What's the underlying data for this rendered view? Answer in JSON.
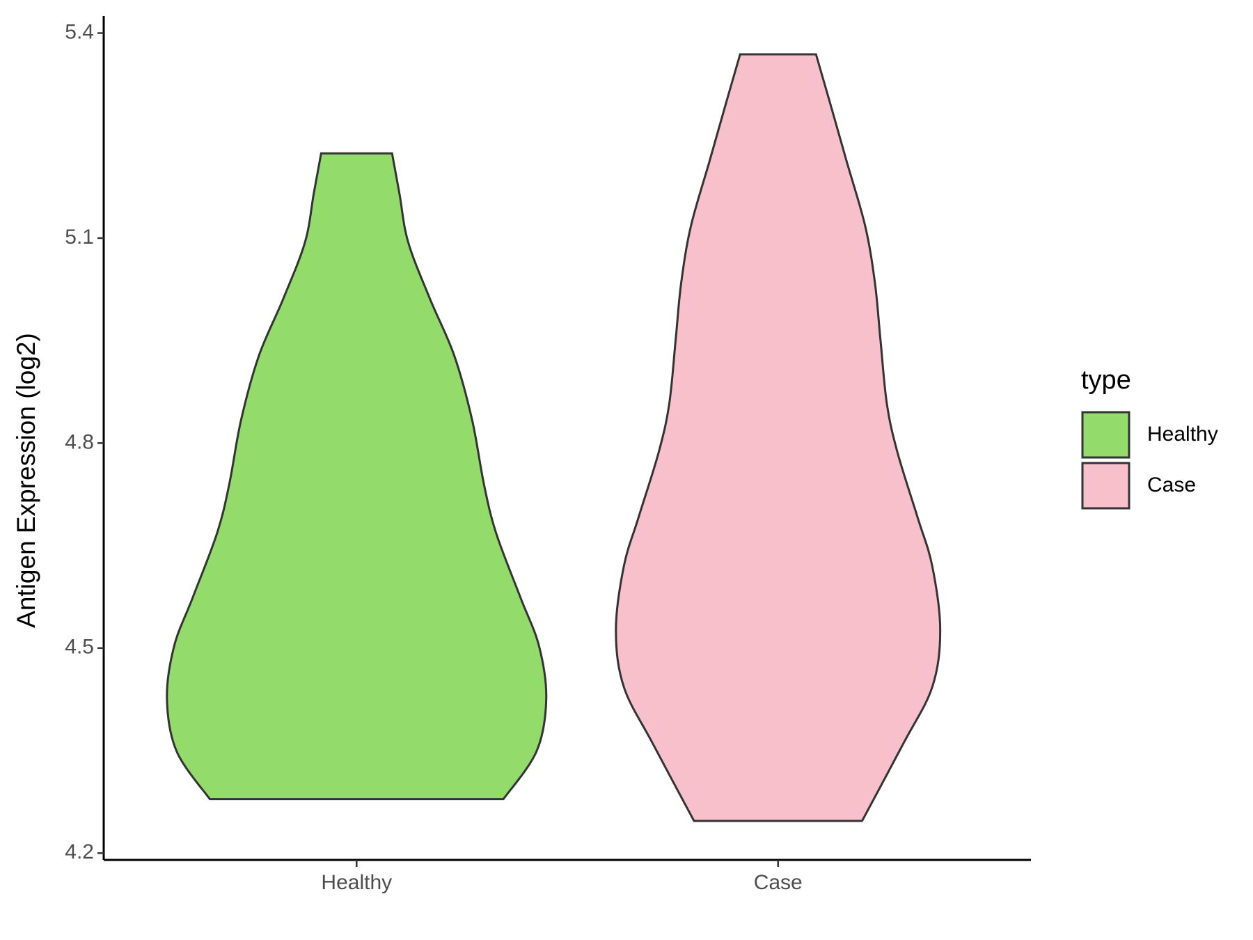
{
  "chart_data": {
    "type": "violin",
    "y_label": "Antigen Expression (log2)",
    "categories": [
      "Healthy",
      "Case"
    ],
    "legend_title": "type",
    "series": [
      {
        "name": "Healthy",
        "color": "#93DB6B",
        "values": [
          5.224,
          5.165,
          5.094,
          5.011,
          4.928,
          4.834,
          4.739,
          4.668,
          4.574,
          4.503,
          4.426,
          4.349,
          4.279
        ],
        "density": [
          0.187,
          0.226,
          0.272,
          0.387,
          0.515,
          0.609,
          0.672,
          0.736,
          0.864,
          0.962,
          1,
          0.949,
          0.774
        ]
      },
      {
        "name": "Case",
        "color": "#F7C0CB",
        "values": [
          5.369,
          5.295,
          5.212,
          5.117,
          5.034,
          4.951,
          4.857,
          4.786,
          4.691,
          4.62,
          4.526,
          4.443,
          4.36,
          4.247
        ],
        "density": [
          0.2,
          0.277,
          0.362,
          0.46,
          0.511,
          0.54,
          0.574,
          0.63,
          0.736,
          0.813,
          0.855,
          0.813,
          0.66,
          0.443
        ]
      }
    ],
    "ylim": [
      4.19,
      5.425
    ],
    "yticks": [
      4.2,
      4.5,
      4.8,
      5.1,
      5.4
    ]
  }
}
